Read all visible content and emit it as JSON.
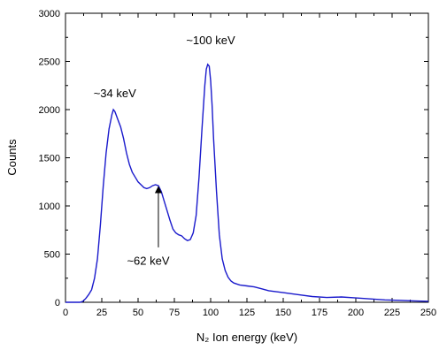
{
  "chart_data": {
    "type": "line",
    "xlabel": "N₂ Ion energy (keV)",
    "ylabel": "Counts",
    "xlim": [
      0,
      250
    ],
    "ylim": [
      0,
      3000
    ],
    "x_ticks": [
      0,
      25,
      50,
      75,
      100,
      125,
      150,
      175,
      200,
      225,
      250
    ],
    "y_ticks": [
      0,
      500,
      1000,
      1500,
      2000,
      2500,
      3000
    ],
    "x_tick_labels": [
      "0",
      "25",
      "50",
      "75",
      "100",
      "125",
      "150",
      "175",
      "200",
      "225",
      "250"
    ],
    "y_tick_labels": [
      "0",
      "500",
      "1000",
      "1500",
      "2000",
      "2500",
      "3000"
    ],
    "grid": false,
    "series": [
      {
        "color": "#1a1acc",
        "x": [
          0,
          10,
          12,
          14,
          16,
          18,
          20,
          22,
          24,
          26,
          28,
          30,
          32,
          33,
          34,
          35,
          36,
          38,
          40,
          42,
          44,
          46,
          48,
          50,
          52,
          54,
          56,
          58,
          60,
          62,
          64,
          66,
          68,
          70,
          72,
          74,
          76,
          78,
          80,
          82,
          84,
          86,
          88,
          90,
          92,
          94,
          96,
          97,
          98,
          99,
          100,
          101,
          102,
          104,
          106,
          108,
          110,
          112,
          114,
          116,
          118,
          120,
          125,
          130,
          135,
          140,
          150,
          160,
          170,
          180,
          190,
          200,
          210,
          220,
          230,
          240,
          250
        ],
        "y": [
          0,
          0,
          10,
          40,
          80,
          130,
          250,
          450,
          800,
          1200,
          1550,
          1800,
          1950,
          2000,
          1980,
          1940,
          1900,
          1820,
          1700,
          1550,
          1430,
          1350,
          1300,
          1250,
          1220,
          1190,
          1180,
          1190,
          1210,
          1220,
          1210,
          1150,
          1050,
          950,
          850,
          760,
          720,
          700,
          690,
          660,
          640,
          650,
          720,
          900,
          1300,
          1800,
          2250,
          2420,
          2470,
          2450,
          2300,
          2050,
          1700,
          1150,
          700,
          450,
          330,
          260,
          220,
          200,
          190,
          180,
          170,
          160,
          140,
          120,
          100,
          80,
          60,
          50,
          55,
          45,
          35,
          25,
          20,
          15,
          10
        ]
      }
    ],
    "annotations": [
      {
        "text": "~34 keV",
        "x": 34,
        "y": 2130
      },
      {
        "text": "~100 keV",
        "x": 100,
        "y": 2680
      },
      {
        "text": "~62 keV",
        "x": 57,
        "y": 390,
        "arrow_from": [
          64,
          570
        ],
        "arrow_to": [
          64,
          1170
        ]
      }
    ]
  }
}
